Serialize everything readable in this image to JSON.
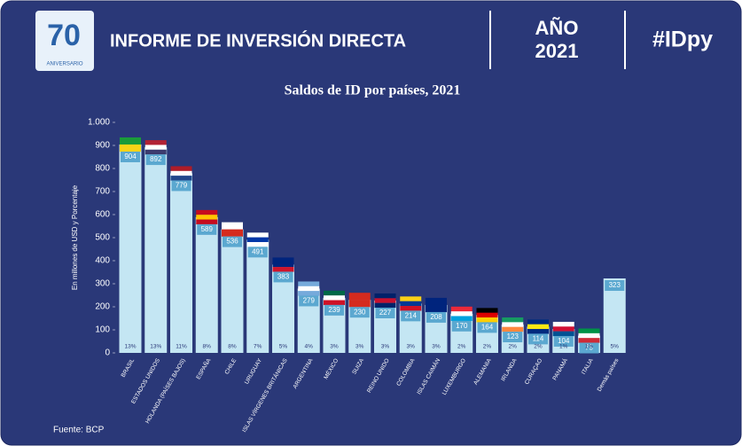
{
  "header": {
    "logo_number": "70",
    "logo_text": "ANIVERSARIO",
    "title": "INFORME DE INVERSIÓN DIRECTA",
    "year_label": "AÑO",
    "year": "2021",
    "hashtag": "#IDpy"
  },
  "chart_data": {
    "type": "bar",
    "title": "Saldos de ID por países, 2021",
    "y_label": "En millones de USD y Porcentaje",
    "categories": [
      "BRASIL",
      "ESTADOS UNIDOS",
      "HOLANDA (PAÍSES BAJOS)",
      "ESPAÑA",
      "CHILE",
      "URUGUAY",
      "ISLAS VÍRGENES BRITÁNICAS",
      "ARGENTINA",
      "MÉXICO",
      "SUIZA",
      "REINO UNIDO",
      "COLOMBIA",
      "ISLAS CAIMÁN",
      "LUXEMBURGO",
      "ALEMANIA",
      "IRLANDA",
      "CURAÇAO",
      "PANAMÁ",
      "ITALIA",
      "Demás países"
    ],
    "values": [
      904,
      892,
      779,
      589,
      536,
      491,
      383,
      279,
      239,
      230,
      227,
      214,
      208,
      170,
      164,
      123,
      114,
      104,
      75,
      323
    ],
    "shares": [
      "13%",
      "13%",
      "11%",
      "8%",
      "8%",
      "7%",
      "5%",
      "4%",
      "3%",
      "3%",
      "3%",
      "3%",
      "3%",
      "2%",
      "2%",
      "2%",
      "2%",
      "1%",
      "1%",
      "5%"
    ],
    "color": "#c4e6f3",
    "label_color": "#5ba8d0",
    "ylim": [
      0,
      1000
    ],
    "yticks": [
      0,
      100,
      200,
      300,
      400,
      500,
      600,
      700,
      800,
      900,
      {
        "value": 1000,
        "label": "1.000"
      }
    ],
    "grid": false
  },
  "footer": {
    "source": "Fuente: BCP"
  }
}
